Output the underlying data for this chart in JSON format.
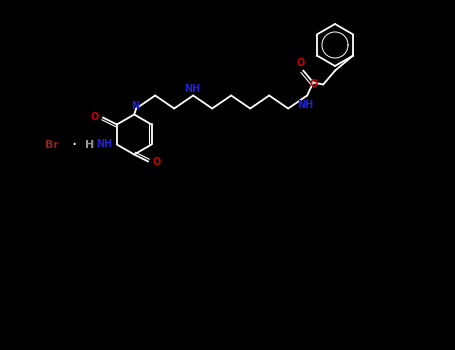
{
  "background_color": "#000000",
  "line_color": "#ffffff",
  "N_color": "#2222cc",
  "O_color": "#cc0000",
  "Br_color": "#8b2222",
  "figsize": [
    4.55,
    3.5
  ],
  "dpi": 100,
  "xlim": [
    0.0,
    4.55
  ],
  "ylim": [
    0.0,
    3.5
  ]
}
